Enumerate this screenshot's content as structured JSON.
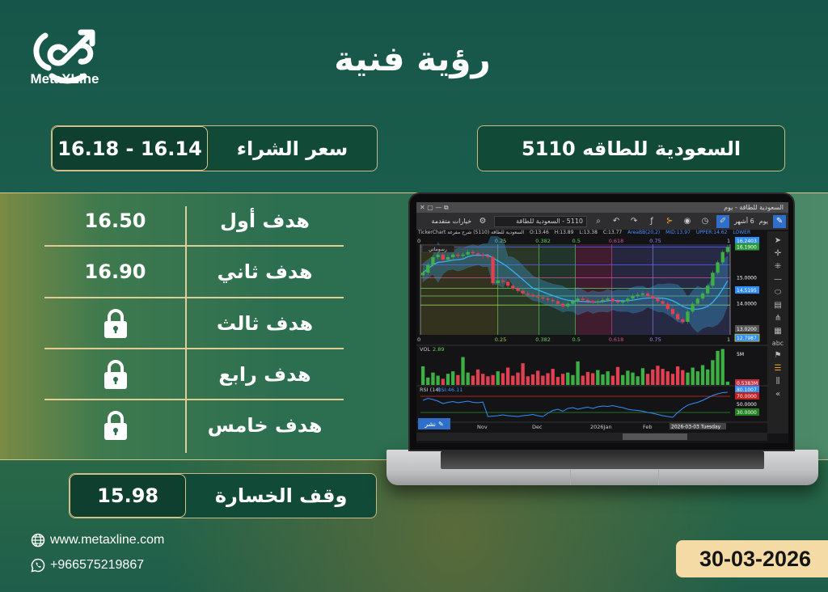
{
  "brand": {
    "name": "MetaXLine"
  },
  "title": "رؤية فنية",
  "stock": {
    "name": "السعودية للطاقه 5110"
  },
  "buy": {
    "label": "سعر الشراء",
    "value": "16.14 - 16.18"
  },
  "targets": [
    {
      "label": "هدف أول",
      "value": "16.50",
      "locked": false
    },
    {
      "label": "هدف ثاني",
      "value": "16.90",
      "locked": false
    },
    {
      "label": "هدف ثالث",
      "value": null,
      "locked": true,
      "icon": "lock-icon"
    },
    {
      "label": "هدف رابع",
      "value": null,
      "locked": true,
      "icon": "lock-icon"
    },
    {
      "label": "هدف خامس",
      "value": null,
      "locked": true,
      "icon": "lock-icon"
    }
  ],
  "stop_loss": {
    "label": "وقف الخسارة",
    "value": "15.98"
  },
  "contact": {
    "website": "www.metaxline.com",
    "phone": "+966575219867"
  },
  "date": "30-03-2026",
  "colors": {
    "gold": "#e1cc95",
    "date_bg": "#f4dba6",
    "panel": "#114a37",
    "up": "#3cb043",
    "down": "#e04050"
  },
  "screen": {
    "window_title": "السعودية للطاقة - يوم",
    "toolbar": {
      "period": "يوم",
      "range": "6 أشهر",
      "search": "5110 - السعودية للطاقة",
      "advanced": "خيارات متقدمة"
    },
    "info": {
      "ticker": "TickerChart السعودية للطاقة (5110) شرح مفرغة",
      "open": "O:13.46",
      "high": "H:13.89",
      "low": "L:13.38",
      "close": "C:13.77",
      "bb": "AreaBB(20,2)",
      "mid": "MID:13.97",
      "upper": "UPPER:14.62",
      "lower": "LOWER"
    },
    "drawings_label": "رسوماتي",
    "publish": "نشر",
    "fib_levels": [
      "0",
      "0.25",
      "0.382",
      "0.5",
      "0.618",
      "0.75",
      "1"
    ],
    "price_labels": [
      "16.2403",
      "16.1900",
      "15.0000",
      "14.5195",
      "14.0000",
      "13.0200",
      "12.7987"
    ],
    "volume": {
      "label": "VOL",
      "value": "2.89",
      "axis": "5M",
      "last": "0.5383M"
    },
    "rsi": {
      "label": "RSI (14)",
      "value": "RSI:46.11",
      "last": "80.1007",
      "upper": "70.0000",
      "mid": "50.0000",
      "lower": "30.0000"
    },
    "x_axis": [
      "Nov",
      "Dec",
      "2026Jan",
      "Feb"
    ],
    "crosshair_date": "2026-03-03 Tuesday"
  },
  "chart_data": {
    "type": "candlestick",
    "closes": [
      15.2,
      15.5,
      15.8,
      15.9,
      15.7,
      15.8,
      15.9,
      15.85,
      15.9,
      16.0,
      15.95,
      15.9,
      15.85,
      15.8,
      14.8,
      14.9,
      14.85,
      14.7,
      14.6,
      14.5,
      14.4,
      14.35,
      14.3,
      14.25,
      14.2,
      14.15,
      14.1,
      14.0,
      13.9,
      14.0,
      14.1,
      14.2,
      14.15,
      14.1,
      14.05,
      14.1,
      14.15,
      14.2,
      14.1,
      14.05,
      14.1,
      14.2,
      14.3,
      14.35,
      14.4,
      14.3,
      14.2,
      14.1,
      14.0,
      13.8,
      13.6,
      13.4,
      13.3,
      13.7,
      14.0,
      14.2,
      14.4,
      14.7,
      15.2,
      15.6,
      16.0,
      16.19
    ],
    "volume": [
      3,
      1.2,
      2,
      1.5,
      1,
      1.8,
      2.2,
      1.6,
      4.5,
      2,
      1.5,
      2.5,
      1.8,
      1.4,
      1.6,
      2.2,
      1.9,
      2.8,
      1.5,
      2,
      3.5,
      1.4,
      1.7,
      2.3,
      1.5,
      1.9,
      2.6,
      1.3,
      1.8,
      2,
      1.6,
      3.8,
      1.5,
      2.1,
      1.9,
      2.4,
      1.7,
      2.2,
      1.5,
      2.9,
      1.6,
      2.3,
      2,
      1.4,
      2.7,
      1.8,
      2.5,
      3.1,
      2.6,
      2.2,
      1.8,
      3,
      2.4,
      2,
      2.8,
      2.2,
      3.2,
      2.5,
      4,
      5.5,
      5.8,
      0.54
    ],
    "rsi": [
      60,
      65,
      62,
      58,
      52,
      55,
      57,
      54,
      56,
      58,
      55,
      54,
      56,
      20,
      21,
      22,
      24,
      22,
      21,
      20,
      22,
      23,
      25,
      22,
      20,
      28,
      35,
      38,
      33,
      40,
      42,
      38,
      41,
      43,
      40,
      44,
      46,
      45,
      47,
      44,
      42,
      38,
      36,
      35,
      33,
      30,
      28,
      25,
      22,
      20,
      18,
      30,
      40,
      48,
      52,
      55,
      60,
      66,
      72,
      76,
      79,
      80
    ],
    "ylim": [
      12.8,
      16.3
    ],
    "rsi_levels": [
      30,
      50,
      70
    ]
  }
}
